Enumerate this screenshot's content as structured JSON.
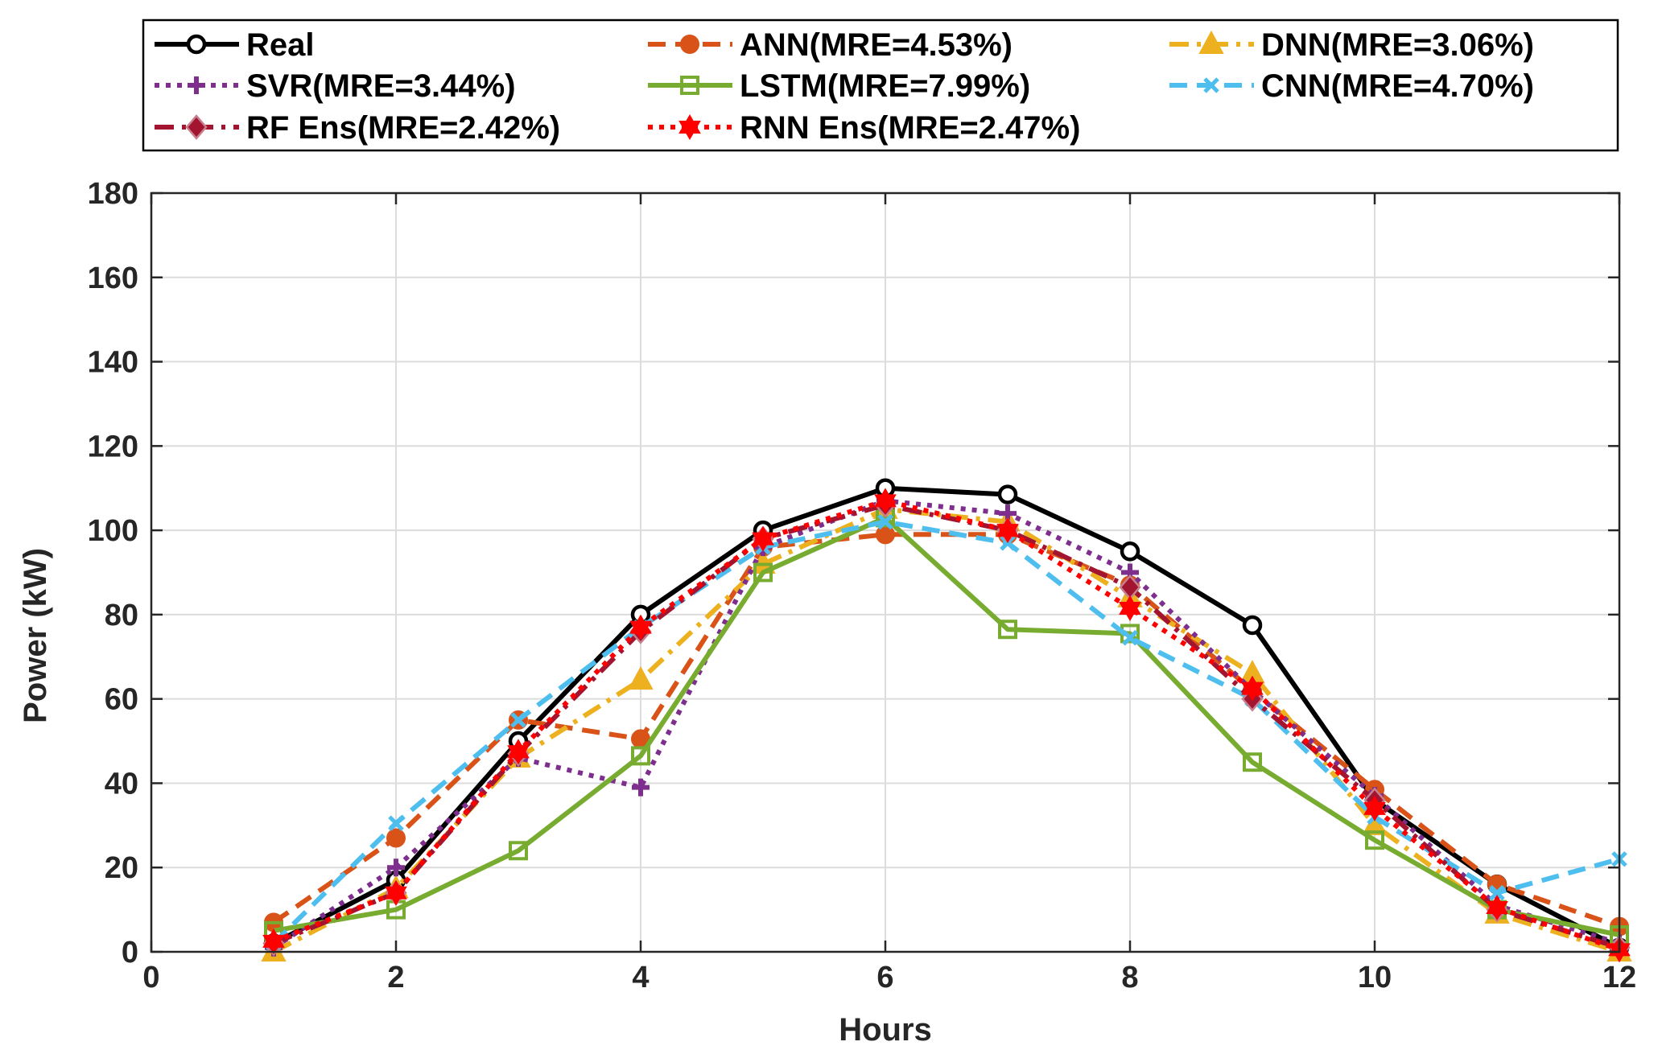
{
  "chart_data": {
    "type": "line",
    "title": "",
    "xlabel": "Hours",
    "ylabel": "Power (kW)",
    "xlim": [
      0,
      12
    ],
    "ylim": [
      0,
      180
    ],
    "xticks": [
      "0",
      "2",
      "4",
      "6",
      "8",
      "10",
      "12"
    ],
    "yticks": [
      "0",
      "20",
      "40",
      "60",
      "80",
      "100",
      "120",
      "140",
      "160",
      "180"
    ],
    "grid": true,
    "legend_position": "top",
    "x": [
      1,
      2,
      3,
      4,
      5,
      6,
      7,
      8,
      9,
      10,
      11,
      12
    ],
    "series": [
      {
        "name": "Real",
        "color": "#000000",
        "dash": "solid",
        "marker": "circle-open",
        "values": [
          2,
          17,
          50,
          80,
          100,
          110,
          108.5,
          95,
          77.5,
          36,
          16,
          1
        ]
      },
      {
        "name": "ANN(MRE=4.53%)",
        "color": "#d95319",
        "dash": "dashed",
        "marker": "circle",
        "values": [
          7,
          27,
          55,
          50.5,
          96,
          99,
          99,
          87,
          62,
          38.5,
          16,
          6
        ]
      },
      {
        "name": "DNN(MRE=3.06%)",
        "color": "#edb120",
        "dash": "dashdot",
        "marker": "triangle",
        "values": [
          0,
          15,
          46,
          64.5,
          92,
          105,
          102,
          84,
          66,
          30,
          9,
          0
        ]
      },
      {
        "name": "SVR(MRE=3.44%)",
        "color": "#7e2f8e",
        "dash": "dotted",
        "marker": "plus",
        "values": [
          1,
          20,
          46,
          39,
          96,
          107,
          104,
          90,
          62,
          37,
          11,
          2
        ]
      },
      {
        "name": "LSTM(MRE=7.99%)",
        "color": "#77ac30",
        "dash": "solid",
        "marker": "square",
        "values": [
          5,
          10,
          24,
          46.5,
          90,
          103,
          76.5,
          75.5,
          45,
          26.5,
          10,
          4
        ]
      },
      {
        "name": "CNN(MRE=4.70%)",
        "color": "#4dbeee",
        "dash": "dashed",
        "marker": "x",
        "values": [
          2,
          30.5,
          55,
          77,
          96,
          102,
          97,
          74.5,
          60,
          32,
          14,
          22
        ]
      },
      {
        "name": "RF Ens(MRE=2.42%)",
        "color": "#a2142f",
        "dash": "dashdot",
        "marker": "diamond",
        "values": [
          2,
          14,
          47,
          76,
          98,
          106,
          100,
          86.5,
          60,
          36,
          10,
          1
        ]
      },
      {
        "name": "RNN Ens(MRE=2.47%)",
        "color": "#ff0000",
        "dash": "dotted",
        "marker": "hexagram",
        "values": [
          2.5,
          14,
          47.5,
          77,
          98,
          107,
          100,
          81.5,
          62.5,
          34,
          10.5,
          0.5
        ]
      }
    ]
  }
}
